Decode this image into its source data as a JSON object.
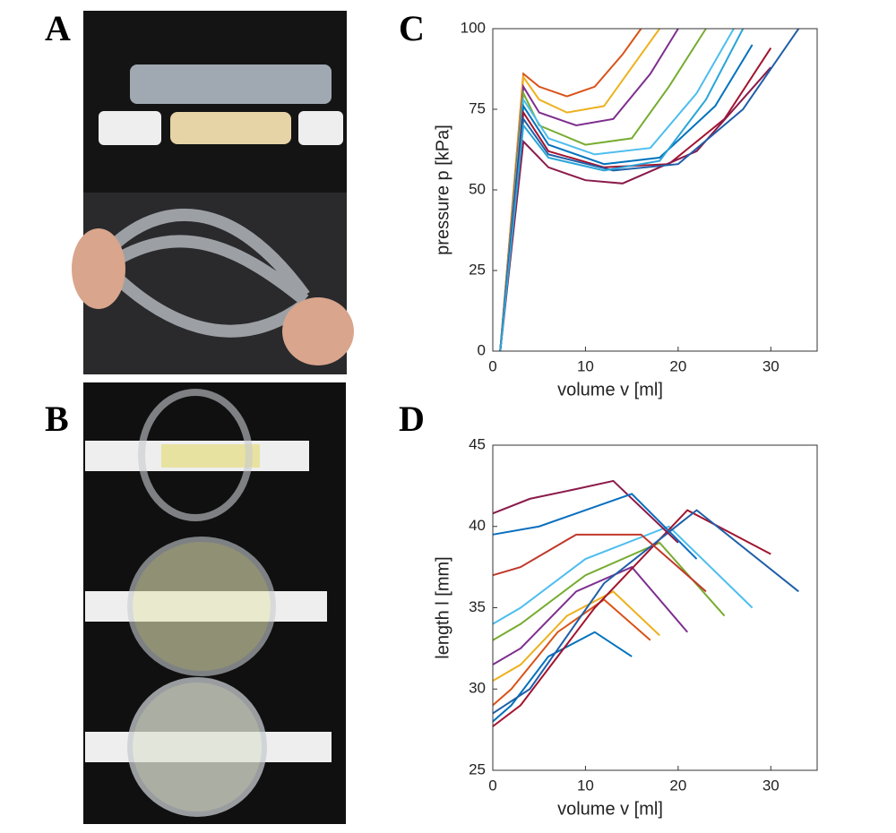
{
  "panel_labels": [
    "A",
    "B",
    "C",
    "D"
  ],
  "chart_data": [
    {
      "type": "line",
      "xlabel": "volume v [ml]",
      "ylabel": "pressure p [kPa]",
      "xlim": [
        0,
        35
      ],
      "ylim": [
        0,
        100
      ],
      "xticks": [
        0,
        10,
        20,
        30
      ],
      "yticks": [
        0,
        25,
        50,
        75,
        100
      ],
      "series": [
        {
          "color": "#d95319",
          "x": [
            0.8,
            3.3,
            5,
            8,
            11,
            14,
            16
          ],
          "values": [
            0,
            86,
            82,
            79,
            82,
            92,
            100
          ]
        },
        {
          "color": "#edb120",
          "x": [
            0.8,
            3.3,
            5,
            8,
            12,
            15,
            18
          ],
          "values": [
            0,
            85,
            78,
            74,
            76,
            88,
            100
          ]
        },
        {
          "color": "#7e2f8e",
          "x": [
            0.8,
            3.3,
            5,
            9,
            13,
            17,
            20
          ],
          "values": [
            0,
            82,
            74,
            70,
            72,
            86,
            100
          ]
        },
        {
          "color": "#77ac30",
          "x": [
            0.8,
            3.3,
            5,
            10,
            15,
            19,
            23
          ],
          "values": [
            0,
            80,
            70,
            64,
            66,
            82,
            100
          ]
        },
        {
          "color": "#4dbeee",
          "x": [
            0.8,
            3.3,
            6,
            11,
            17,
            22,
            26
          ],
          "values": [
            0,
            78,
            66,
            61,
            63,
            80,
            100
          ]
        },
        {
          "color": "#0072bd",
          "x": [
            0.8,
            3.3,
            6,
            12,
            18,
            24,
            28
          ],
          "values": [
            0,
            76,
            64,
            58,
            60,
            76,
            95
          ]
        },
        {
          "color": "#a2142f",
          "x": [
            0.8,
            3.3,
            6,
            12,
            19,
            25,
            30
          ],
          "values": [
            0,
            74,
            62,
            57,
            58,
            72,
            94
          ]
        },
        {
          "color": "#8b1a4a",
          "x": [
            0.8,
            3.3,
            6,
            10,
            14,
            22,
            30
          ],
          "values": [
            0,
            65,
            57,
            53,
            52,
            62,
            88
          ]
        },
        {
          "color": "#1f5fa8",
          "x": [
            0.8,
            3.3,
            6,
            13,
            20,
            27,
            33
          ],
          "values": [
            0,
            72,
            61,
            56,
            58,
            75,
            100
          ]
        },
        {
          "color": "#2aa5d8",
          "x": [
            0.8,
            3.3,
            6,
            12,
            18,
            23,
            27
          ],
          "values": [
            0,
            70,
            60,
            56,
            59,
            78,
            100
          ]
        }
      ]
    },
    {
      "type": "line",
      "xlabel": "volume v [ml]",
      "ylabel": "length l [mm]",
      "xlim": [
        0,
        35
      ],
      "ylim": [
        25,
        45
      ],
      "xticks": [
        0,
        10,
        20,
        30
      ],
      "yticks": [
        25,
        30,
        35,
        40,
        45
      ],
      "series": [
        {
          "color": "#0072bd",
          "x": [
            0,
            2,
            6,
            11,
            15
          ],
          "values": [
            28,
            29,
            32,
            33.5,
            32
          ]
        },
        {
          "color": "#d95319",
          "x": [
            0,
            2,
            7,
            12,
            17
          ],
          "values": [
            29,
            30,
            33.5,
            35.5,
            33
          ]
        },
        {
          "color": "#edb120",
          "x": [
            0,
            3,
            8,
            13,
            18
          ],
          "values": [
            30.5,
            31.5,
            34.5,
            36,
            33.3
          ]
        },
        {
          "color": "#7e2f8e",
          "x": [
            0,
            3,
            9,
            15,
            21
          ],
          "values": [
            31.5,
            32.5,
            36,
            37.5,
            33.5
          ]
        },
        {
          "color": "#77ac30",
          "x": [
            0,
            3,
            10,
            18,
            25
          ],
          "values": [
            33,
            34,
            37,
            39,
            34.5
          ]
        },
        {
          "color": "#4dbeee",
          "x": [
            0,
            3,
            10,
            19,
            28
          ],
          "values": [
            34,
            35,
            38,
            40,
            35
          ]
        },
        {
          "color": "#a2142f",
          "x": [
            0,
            3,
            11,
            21,
            30
          ],
          "values": [
            27.7,
            29,
            35,
            41,
            38.3
          ]
        },
        {
          "color": "#1f5fa8",
          "x": [
            0,
            4,
            12,
            22,
            33
          ],
          "values": [
            28.5,
            30,
            36.5,
            41,
            36
          ]
        },
        {
          "color": "#c0392b",
          "x": [
            0,
            3,
            9,
            16,
            23
          ],
          "values": [
            37,
            37.5,
            39.5,
            39.5,
            36
          ]
        },
        {
          "color": "#8b1a4a",
          "x": [
            0,
            4,
            9,
            13,
            20
          ],
          "values": [
            40.8,
            41.7,
            42.3,
            42.8,
            39
          ]
        },
        {
          "color": "#0a6fbf",
          "x": [
            0,
            5,
            10,
            15,
            22
          ],
          "values": [
            39.5,
            40,
            41,
            42,
            38
          ]
        }
      ]
    }
  ]
}
